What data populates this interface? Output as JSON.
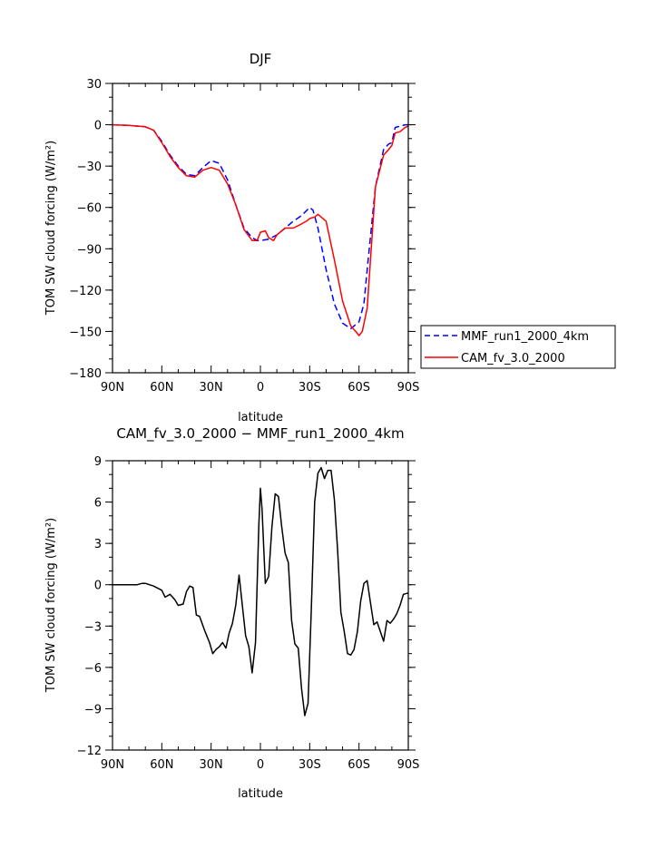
{
  "chart_data": [
    {
      "type": "line",
      "title": "DJF",
      "xlabel": "latitude",
      "ylabel": "TOM SW cloud forcing (W/m²)",
      "xlim": [
        90,
        -90
      ],
      "ylim": [
        -180,
        30
      ],
      "x_ticks": [
        90,
        60,
        30,
        0,
        -30,
        -60,
        -90
      ],
      "x_tick_labels": [
        "90N",
        "60N",
        "30N",
        "0",
        "30S",
        "60S",
        "90S"
      ],
      "y_ticks": [
        30,
        0,
        -30,
        -60,
        -90,
        -120,
        -150,
        -180
      ],
      "y_tick_labels": [
        "30",
        "0",
        "−30",
        "−60",
        "−90",
        "−120",
        "−150",
        "−180"
      ],
      "legend": {
        "placement": "outside-right",
        "entries": [
          "MMF_run1_2000_4km",
          "CAM_fv_3.0_2000"
        ]
      },
      "series": [
        {
          "name": "MMF_run1_2000_4km",
          "color": "#0000ff",
          "dash": "dashed",
          "x": [
            90,
            80,
            70,
            65,
            60,
            55,
            50,
            45,
            40,
            35,
            30,
            25,
            20,
            15,
            10,
            5,
            2,
            0,
            -5,
            -10,
            -15,
            -20,
            -25,
            -30,
            -32,
            -35,
            -40,
            -45,
            -50,
            -55,
            -60,
            -63,
            -65,
            -70,
            -75,
            -78,
            -80,
            -82,
            -85,
            -88,
            -90
          ],
          "y": [
            0,
            -0.5,
            -1.5,
            -4,
            -12,
            -22,
            -30,
            -36,
            -37,
            -31,
            -26,
            -28,
            -40,
            -58,
            -75,
            -82,
            -84,
            -84,
            -83,
            -80,
            -75,
            -70,
            -66,
            -60,
            -62,
            -75,
            -105,
            -130,
            -144,
            -148,
            -143,
            -130,
            -105,
            -45,
            -18,
            -14,
            -13,
            -2,
            -1,
            0,
            0
          ]
        },
        {
          "name": "CAM_fv_3.0_2000",
          "color": "#ff0000",
          "dash": "solid",
          "x": [
            90,
            80,
            70,
            65,
            60,
            55,
            50,
            45,
            40,
            35,
            30,
            25,
            20,
            15,
            10,
            5,
            2,
            0,
            -3,
            -5,
            -8,
            -10,
            -15,
            -20,
            -25,
            -28,
            -30,
            -33,
            -35,
            -40,
            -45,
            -50,
            -55,
            -58,
            -60,
            -62,
            -65,
            -70,
            -75,
            -78,
            -80,
            -82,
            -85,
            -88,
            -90
          ],
          "y": [
            0,
            -0.5,
            -1.5,
            -4,
            -13,
            -23,
            -31,
            -37,
            -38,
            -33,
            -31,
            -33,
            -43,
            -58,
            -76,
            -84,
            -84,
            -78,
            -77,
            -82,
            -84,
            -80,
            -75,
            -75,
            -72,
            -70,
            -68,
            -67,
            -65,
            -70,
            -98,
            -128,
            -146,
            -150,
            -153,
            -150,
            -133,
            -45,
            -22,
            -18,
            -15,
            -6,
            -5,
            -2,
            -1
          ]
        }
      ]
    },
    {
      "type": "line",
      "title": "CAM_fv_3.0_2000 − MMF_run1_2000_4km",
      "xlabel": "latitude",
      "ylabel": "TOM SW cloud forcing (W/m²)",
      "xlim": [
        90,
        -90
      ],
      "ylim": [
        -12,
        9
      ],
      "x_ticks": [
        90,
        60,
        30,
        0,
        -30,
        -60,
        -90
      ],
      "x_tick_labels": [
        "90N",
        "60N",
        "30N",
        "0",
        "30S",
        "60S",
        "90S"
      ],
      "y_ticks": [
        9,
        6,
        3,
        0,
        -3,
        -6,
        -9,
        -12
      ],
      "y_tick_labels": [
        "9",
        "6",
        "3",
        "0",
        "−3",
        "−6",
        "−9",
        "−12"
      ],
      "series": [
        {
          "color": "#000000",
          "dash": "solid",
          "x": [
            90,
            85,
            80,
            75,
            72,
            70,
            65,
            60,
            58,
            55,
            52,
            50,
            47,
            45,
            43,
            41,
            39,
            37,
            34,
            31,
            29,
            27,
            25,
            23,
            21,
            19,
            17,
            15,
            13,
            11,
            9,
            7,
            5,
            3,
            1,
            0,
            -1,
            -3,
            -5,
            -7,
            -9,
            -11,
            -13,
            -15,
            -17,
            -19,
            -21,
            -23,
            -25,
            -27,
            -29,
            -31,
            -33,
            -35,
            -37,
            -39,
            -41,
            -43,
            -45,
            -47,
            -49,
            -51,
            -53,
            -55,
            -57,
            -59,
            -61,
            -63,
            -65,
            -67,
            -69,
            -71,
            -73,
            -75,
            -77,
            -79,
            -81,
            -83,
            -85,
            -87,
            -90
          ],
          "y": [
            0,
            0,
            0,
            0,
            0.1,
            0.1,
            -0.1,
            -0.4,
            -0.9,
            -0.7,
            -1.1,
            -1.5,
            -1.4,
            -0.5,
            -0.1,
            -0.2,
            -2.2,
            -2.3,
            -3.3,
            -4.2,
            -5.0,
            -4.7,
            -4.5,
            -4.2,
            -4.6,
            -3.5,
            -2.8,
            -1.5,
            0.7,
            -1.5,
            -3.7,
            -4.5,
            -6.4,
            -4.2,
            4.2,
            7.0,
            5.5,
            0.1,
            0.6,
            4.2,
            6.6,
            6.4,
            4.2,
            2.3,
            1.6,
            -2.6,
            -4.3,
            -4.6,
            -7.5,
            -9.5,
            -8.6,
            -1.8,
            6.0,
            8.1,
            8.5,
            7.7,
            8.3,
            8.3,
            6.2,
            2.5,
            -2.0,
            -3.4,
            -5.0,
            -5.1,
            -4.7,
            -3.4,
            -1.2,
            0.1,
            0.3,
            -1.3,
            -2.9,
            -2.7,
            -3.4,
            -4.1,
            -2.6,
            -2.8,
            -2.5,
            -2.1,
            -1.5,
            -0.7,
            -0.6
          ]
        }
      ]
    }
  ]
}
